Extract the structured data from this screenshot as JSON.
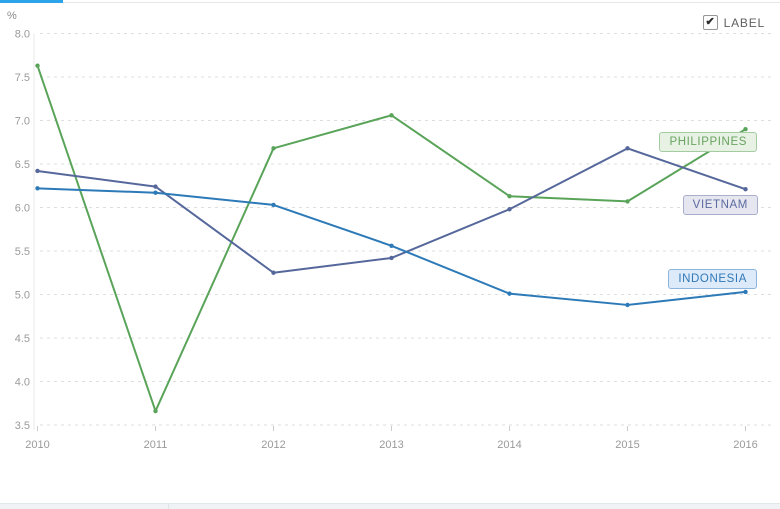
{
  "header": {
    "unit_label": "%",
    "label_checkbox": {
      "label": "LABEL",
      "checked": true,
      "check_glyph": "✔"
    }
  },
  "chart_data": {
    "type": "line",
    "title": "",
    "xlabel": "",
    "ylabel": "%",
    "x": [
      2010,
      2011,
      2012,
      2013,
      2014,
      2015,
      2016
    ],
    "ylim": [
      3.5,
      8.0
    ],
    "ytick_step": 0.5,
    "grid": true,
    "legend_position": "right-inline-labels",
    "series": [
      {
        "name": "PHILIPPINES",
        "color": "#5aa45a",
        "values": [
          7.63,
          3.66,
          6.68,
          7.06,
          6.13,
          6.07,
          6.9
        ]
      },
      {
        "name": "VIETNAM",
        "color": "#56689b",
        "values": [
          6.42,
          6.24,
          5.25,
          5.42,
          5.98,
          6.68,
          6.21
        ]
      },
      {
        "name": "INDONESIA",
        "color": "#2d7ab8",
        "values": [
          6.22,
          6.17,
          6.03,
          5.56,
          5.01,
          4.88,
          5.03
        ]
      }
    ]
  },
  "series_labels": [
    {
      "text": "PHILIPPINES",
      "text_color": "#69a25f",
      "bg": "#e7f2e5",
      "border": "#a5cba0"
    },
    {
      "text": "VIETNAM",
      "text_color": "#5c6b9e",
      "bg": "#e6e6f0",
      "border": "#a9aecb"
    },
    {
      "text": "INDONESIA",
      "text_color": "#3078b8",
      "bg": "#dceafa",
      "border": "#8cb4dd"
    }
  ],
  "colors": {
    "active_tab": "#2da3ea",
    "gridline": "#dddddd",
    "axis_line": "#e8e8e8",
    "tick": "#cccccc",
    "axis_text": "#9a9a9a"
  }
}
